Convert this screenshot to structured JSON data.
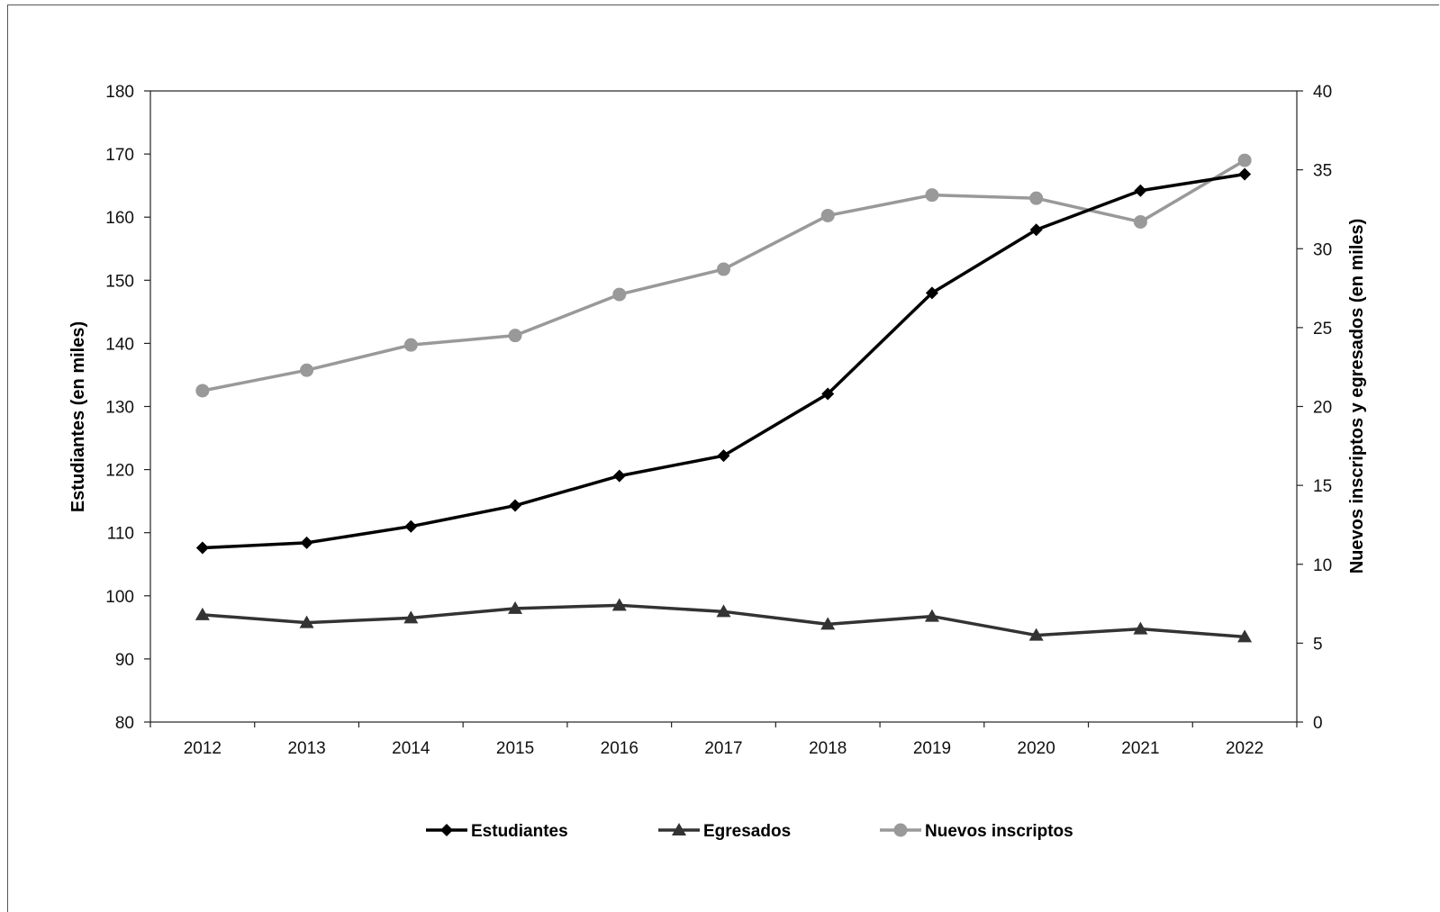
{
  "chart_data": {
    "type": "line",
    "x": [
      "2012",
      "2013",
      "2014",
      "2015",
      "2016",
      "2017",
      "2018",
      "2019",
      "2020",
      "2021",
      "2022"
    ],
    "y_left": {
      "label": "Estudiantes (en miles)",
      "lim": [
        80,
        180
      ],
      "step": 10
    },
    "y_right": {
      "label": "Nuevos inscriptos y egresados (en miles)",
      "lim": [
        0,
        40
      ],
      "step": 5
    },
    "legend_position": "bottom",
    "grid": false,
    "series": [
      {
        "name": "Estudiantes",
        "axis": "left",
        "marker": "diamond",
        "color": "#000000",
        "values": [
          107.6,
          108.4,
          111.0,
          114.3,
          119.0,
          122.2,
          132.0,
          148.0,
          158.0,
          164.2,
          166.8
        ]
      },
      {
        "name": "Egresados",
        "axis": "right",
        "marker": "triangle",
        "color": "#333333",
        "values": [
          6.8,
          6.3,
          6.6,
          7.2,
          7.4,
          7.0,
          6.2,
          6.7,
          5.5,
          5.9,
          5.4
        ]
      },
      {
        "name": "Nuevos inscriptos",
        "axis": "right",
        "marker": "circle",
        "color": "#999999",
        "values": [
          21.0,
          22.3,
          23.9,
          24.5,
          27.1,
          28.7,
          32.1,
          33.4,
          33.2,
          31.7,
          35.6
        ]
      }
    ]
  }
}
